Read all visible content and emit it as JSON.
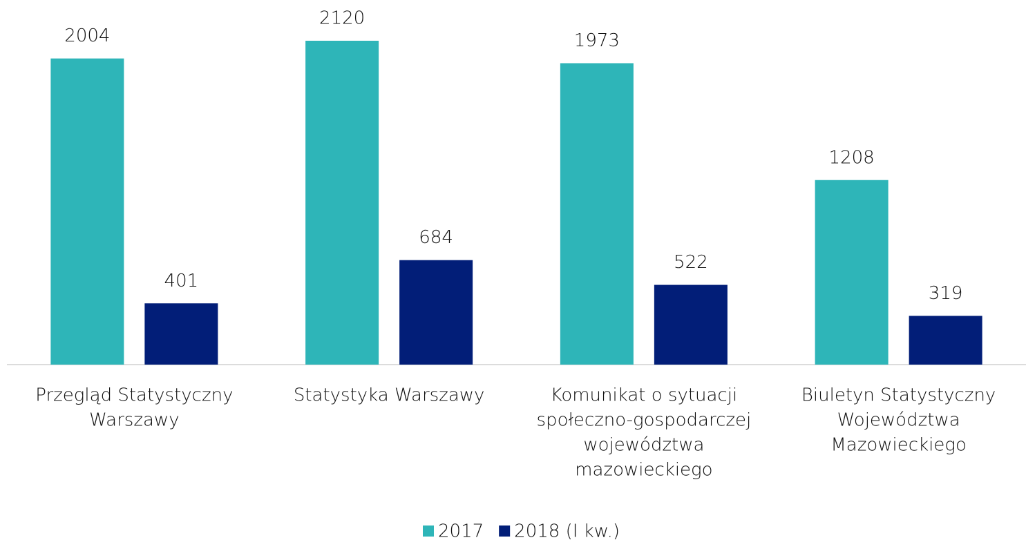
{
  "chart_data": {
    "type": "bar",
    "categories": [
      [
        "Przegląd Statystyczny",
        "Warszawy"
      ],
      [
        "Statystyka Warszawy"
      ],
      [
        "Komunikat o sytuacji",
        "społeczno-gospodarczej",
        "województwa",
        "mazowieckiego"
      ],
      [
        "Biuletyn Statystyczny",
        "Województwa",
        "Mazowieckiego"
      ]
    ],
    "series": [
      {
        "name": "2017",
        "color": "#2eb5b8",
        "values": [
          2004,
          2120,
          1973,
          1208
        ]
      },
      {
        "name": "2018 (I kw.)",
        "color": "#021e78",
        "values": [
          401,
          684,
          522,
          319
        ]
      }
    ],
    "legend": "bottom"
  }
}
